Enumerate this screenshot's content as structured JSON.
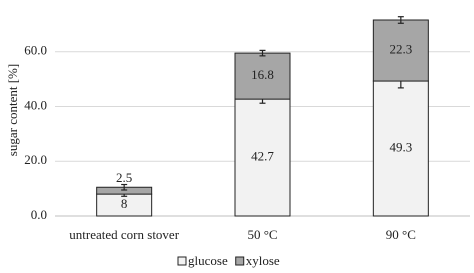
{
  "chart_data": {
    "type": "bar",
    "stacked": true,
    "ylabel": "sugar content [%]",
    "categories": [
      "untreated corn stover",
      "50 °C",
      "90 °C"
    ],
    "series": [
      {
        "name": "glucose",
        "color": "#f2f2f2",
        "values": [
          8,
          42.7,
          49.3
        ],
        "errors": [
          0.8,
          1.5,
          2.5
        ]
      },
      {
        "name": "xylose",
        "color": "#a6a6a6",
        "values": [
          2.5,
          16.8,
          22.3
        ],
        "errors": [
          1,
          1,
          1.2
        ]
      }
    ],
    "ylim": [
      0,
      80
    ],
    "yticks": [
      {
        "value": 0,
        "label": "0.0"
      },
      {
        "value": 20,
        "label": "20.0"
      },
      {
        "value": 40,
        "label": "40.0"
      },
      {
        "value": 60,
        "label": "60.0"
      }
    ],
    "grid": true,
    "legend": "bottom"
  }
}
